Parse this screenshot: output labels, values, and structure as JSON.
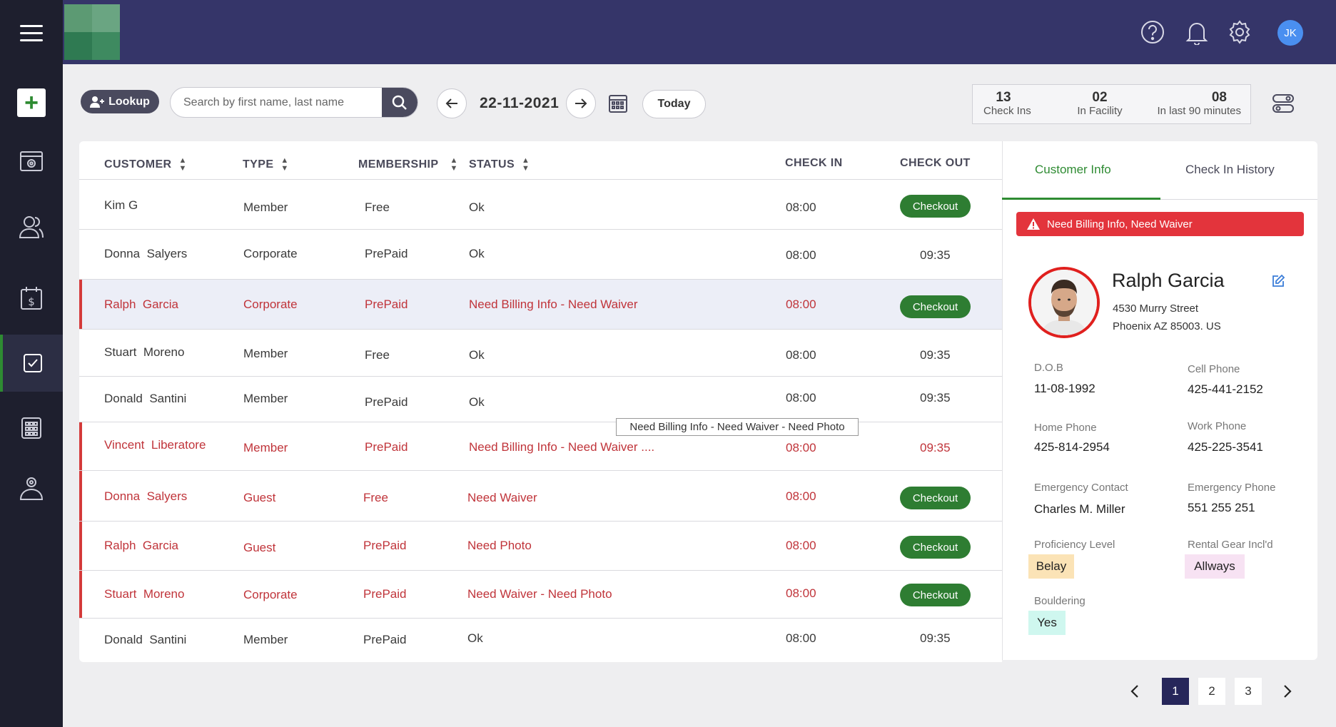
{
  "header": {
    "avatar_initials": "JK"
  },
  "toolbar": {
    "lookup_label": "Lookup",
    "search_placeholder": "Search by first name, last name",
    "date": "22-11-2021",
    "today_label": "Today"
  },
  "stats": [
    {
      "value": "13",
      "label": "Check Ins"
    },
    {
      "value": "02",
      "label": "In Facility"
    },
    {
      "value": "08",
      "label": "In last 90 minutes"
    }
  ],
  "table": {
    "columns": [
      "CUSTOMER",
      "TYPE",
      "MEMBERSHIP",
      "STATUS",
      "CHECK IN",
      "CHECK OUT"
    ],
    "checkout_label": "Checkout",
    "rows": [
      {
        "first": "Kim",
        "last": "G",
        "type": "Member",
        "membership": "Free",
        "status": "Ok",
        "check_in": "08:00",
        "check_out": ""
      },
      {
        "first": "Donna",
        "last": "Salyers",
        "type": "Corporate",
        "membership": "PrePaid",
        "status": "Ok",
        "check_in": "08:00",
        "check_out": "09:35"
      },
      {
        "first": "Ralph",
        "last": "Garcia",
        "type": "Corporate",
        "membership": "PrePaid",
        "status": "Need Billing Info - Need Waiver",
        "check_in": "08:00",
        "check_out": ""
      },
      {
        "first": "Stuart",
        "last": "Moreno",
        "type": "Member",
        "membership": "Free",
        "status": "Ok",
        "check_in": "08:00",
        "check_out": "09:35"
      },
      {
        "first": "Donald",
        "last": "Santini",
        "type": "Member",
        "membership": "PrePaid",
        "status": "Ok",
        "check_in": "08:00",
        "check_out": "09:35"
      },
      {
        "first": "Vincent",
        "last": "Liberatore",
        "type": "Member",
        "membership": "PrePaid",
        "status": "Need Billing Info - Need Waiver ....",
        "check_in": "08:00",
        "check_out": "09:35"
      },
      {
        "first": "Donna",
        "last": "Salyers",
        "type": "Guest",
        "membership": "Free",
        "status": "Need Waiver",
        "check_in": "08:00",
        "check_out": ""
      },
      {
        "first": "Ralph",
        "last": "Garcia",
        "type": "Guest",
        "membership": "PrePaid",
        "status": "Need Photo",
        "check_in": "08:00",
        "check_out": ""
      },
      {
        "first": "Stuart",
        "last": "Moreno",
        "type": "Corporate",
        "membership": "PrePaid",
        "status": "Need Waiver - Need Photo",
        "check_in": "08:00",
        "check_out": ""
      },
      {
        "first": "Donald",
        "last": "Santini",
        "type": "Member",
        "membership": "PrePaid",
        "status": "Ok",
        "check_in": "08:00",
        "check_out": "09:35"
      }
    ],
    "tooltip": "Need Billing Info - Need Waiver - Need Photo"
  },
  "panel": {
    "tabs": [
      "Customer Info",
      "Check In History"
    ],
    "alert": "Need Billing Info, Need Waiver",
    "name": "Ralph Garcia",
    "address_line1": "4530 Murry Street",
    "address_line2": "Phoenix AZ 85003. US",
    "fields": {
      "dob_label": "D.O.B",
      "dob": "11-08-1992",
      "cell_label": "Cell Phone",
      "cell": "425-441-2152",
      "home_label": "Home Phone",
      "home": "425-814-2954",
      "work_label": "Work Phone",
      "work": "425-225-3541",
      "emergency_contact_label": "Emergency Contact",
      "emergency_contact": "Charles M. Miller",
      "emergency_phone_label": "Emergency Phone",
      "emergency_phone": "551 255 251",
      "proficiency_label": "Proficiency Level",
      "proficiency": "Belay",
      "rental_label": "Rental Gear Incl'd",
      "rental": "Allways",
      "bouldering_label": "Bouldering",
      "bouldering": "Yes"
    }
  },
  "pagination": {
    "pages": [
      "1",
      "2",
      "3"
    ],
    "current": "1"
  },
  "colors": {
    "sidebar": "#1e1f2e",
    "header": "#353569",
    "accent_green": "#2e7d32",
    "alert_red": "#e3343c",
    "page_active": "#26265a"
  }
}
